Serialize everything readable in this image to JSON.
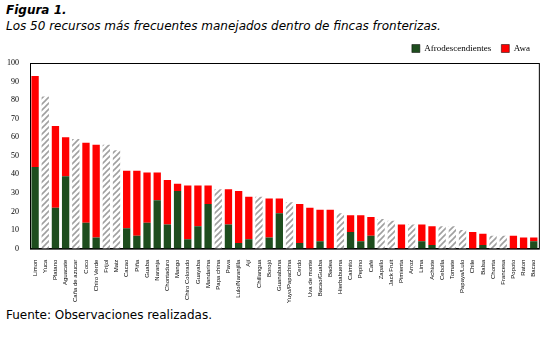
{
  "chart_data": {
    "type": "bar",
    "title": "Figura 1.",
    "subtitle": "Los 50 recursos más frecuentes manejados dentro de fincas fronterizas.",
    "annotations": [
      "Fuente: Observaciones realizadas."
    ],
    "categories": [
      "Limon",
      "Yuca",
      "Platano",
      "Aguacate",
      "Caña de azucar",
      "Coco",
      "Chiro Verde",
      "Frijol",
      "Maiz",
      "Cacao",
      "Piña",
      "Guaba",
      "Naranja",
      "Chontaduro",
      "Mango",
      "Chiro Colorado",
      "Guayaba",
      "Mandarina",
      "Papa china",
      "Pava",
      "Lulo/Naranjilla",
      "Ají",
      "Chillangua",
      "Borojó",
      "Guanabana",
      "Yuyo/Papachina",
      "Cerdo",
      "Uva de monte",
      "Bacao/Guaba",
      "Badea",
      "Hierbabuena",
      "Caimito",
      "Pepino",
      "Café",
      "Zapallo",
      "Jack Fruit",
      "Pimienta",
      "Arroz",
      "Lima",
      "Achiote",
      "Cebolla",
      "Tomate",
      "Papaya/Lulo",
      "Chile",
      "Balsa",
      "Chonta",
      "Francesa",
      "Popoto",
      "Raton",
      "Bacao"
    ],
    "series": [
      {
        "name": "Afrodescendientes",
        "color": "#1e4d1e",
        "values": [
          44,
          0,
          22,
          39,
          0,
          14,
          6,
          0,
          0,
          11,
          7,
          14,
          26,
          13,
          31,
          5,
          12,
          24,
          0,
          13,
          3,
          5,
          0,
          6,
          19,
          0,
          3,
          0,
          4,
          0,
          0,
          9,
          4,
          7,
          0,
          0,
          0,
          0,
          4,
          2,
          0,
          0,
          0,
          0,
          2,
          0,
          0,
          0,
          0,
          4
        ]
      },
      {
        "name": "Awa",
        "color": "#ff0000",
        "colors": [
          "#ff0000",
          "#a0a0a0",
          "#ff0000",
          "#ff0000",
          "#a0a0a0",
          "#ff0000",
          "#ff0000",
          "#a0a0a0",
          "#a0a0a0",
          "#ff0000",
          "#ff0000",
          "#ff0000",
          "#ff0000",
          "#ff0000",
          "#ff0000",
          "#ff0000",
          "#ff0000",
          "#ff0000",
          "#a0a0a0",
          "#ff0000",
          "#ff0000",
          "#ff0000",
          "#a0a0a0",
          "#ff0000",
          "#ff0000",
          "#a0a0a0",
          "#ff0000",
          "#ff0000",
          "#ff0000",
          "#ff0000",
          "#a0a0a0",
          "#ff0000",
          "#ff0000",
          "#ff0000",
          "#a0a0a0",
          "#a0a0a0",
          "#ff0000",
          "#a0a0a0",
          "#ff0000",
          "#ff0000",
          "#a0a0a0",
          "#a0a0a0",
          "#a0a0a0",
          "#ff0000",
          "#ff0000",
          "#a0a0a0",
          "#a0a0a0",
          "#ff0000",
          "#ff0000",
          "#ff0000"
        ],
        "values": [
          49,
          82,
          44,
          21,
          59,
          43,
          50,
          56,
          53,
          31,
          35,
          27,
          15,
          24,
          4,
          29,
          22,
          10,
          32,
          19,
          28,
          23,
          28,
          21,
          8,
          25,
          21,
          22,
          17,
          21,
          19,
          9,
          14,
          10,
          16,
          15,
          13,
          13,
          9,
          10,
          12,
          12,
          10,
          9,
          6,
          7,
          7,
          7,
          6,
          2
        ]
      }
    ],
    "stacked": true,
    "grid": false,
    "legend": "top-right",
    "ylim": [
      0,
      100
    ],
    "yticks": [
      0,
      10,
      20,
      30,
      40,
      50,
      60,
      70,
      80,
      90,
      100
    ]
  }
}
